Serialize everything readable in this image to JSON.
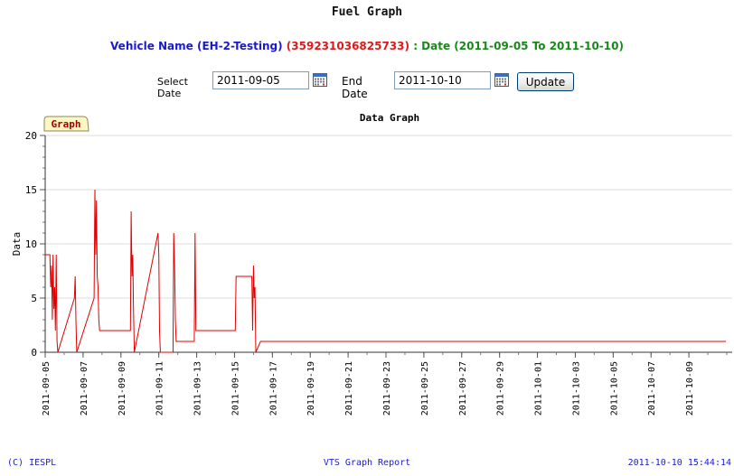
{
  "page": {
    "title": "Fuel Graph"
  },
  "vehicle": {
    "name_label": "Vehicle Name (EH-2-Testing)",
    "id_label": "(359231036825733)",
    "date_label": ": Date (2011-09-05 To 2011-10-10)"
  },
  "filters": {
    "select_label": "Select Date",
    "start_date": "2011-09-05",
    "end_label": "End Date",
    "end_date": "2011-10-10",
    "update_label": "Update"
  },
  "chart_tab": {
    "label": "Graph"
  },
  "chart_data": {
    "type": "line",
    "title": "Data Graph",
    "xlabel": "",
    "ylabel": "Data",
    "ylim": [
      0,
      20
    ],
    "yticks": [
      0,
      5,
      10,
      15,
      20
    ],
    "xlim": [
      "2011-09-05",
      "2011-10-11"
    ],
    "xticks": [
      "2011-09-05",
      "2011-09-07",
      "2011-09-09",
      "2011-09-11",
      "2011-09-13",
      "2011-09-15",
      "2011-09-17",
      "2011-09-19",
      "2011-09-21",
      "2011-09-23",
      "2011-09-25",
      "2011-09-27",
      "2011-09-29",
      "2011-10-01",
      "2011-10-03",
      "2011-10-05",
      "2011-10-07",
      "2011-10-09"
    ],
    "grid": true,
    "line_color": "#e00000",
    "series": [
      {
        "points": [
          [
            "2011-09-05 00:00",
            9
          ],
          [
            "2011-09-05 06:00",
            9
          ],
          [
            "2011-09-05 07:00",
            6
          ],
          [
            "2011-09-05 08:00",
            8
          ],
          [
            "2011-09-05 09:00",
            3
          ],
          [
            "2011-09-05 10:00",
            9
          ],
          [
            "2011-09-05 11:00",
            4
          ],
          [
            "2011-09-05 12:00",
            6
          ],
          [
            "2011-09-05 13:00",
            2
          ],
          [
            "2011-09-05 14:00",
            9
          ],
          [
            "2011-09-05 15:00",
            1
          ],
          [
            "2011-09-05 16:00",
            0
          ],
          [
            "2011-09-06 13:00",
            5
          ],
          [
            "2011-09-06 14:00",
            7
          ],
          [
            "2011-09-06 15:00",
            3
          ],
          [
            "2011-09-06 16:00",
            0
          ],
          [
            "2011-09-07 14:00",
            5
          ],
          [
            "2011-09-07 15:00",
            15
          ],
          [
            "2011-09-07 16:00",
            9
          ],
          [
            "2011-09-07 17:00",
            14
          ],
          [
            "2011-09-07 18:00",
            7
          ],
          [
            "2011-09-07 19:00",
            6
          ],
          [
            "2011-09-07 20:00",
            3
          ],
          [
            "2011-09-07 21:00",
            2
          ],
          [
            "2011-09-09 12:00",
            2
          ],
          [
            "2011-09-09 13:00",
            13
          ],
          [
            "2011-09-09 14:00",
            7
          ],
          [
            "2011-09-09 15:00",
            9
          ],
          [
            "2011-09-09 16:00",
            4
          ],
          [
            "2011-09-09 17:00",
            0
          ],
          [
            "2011-09-10 23:00",
            11
          ],
          [
            "2011-09-11 00:00",
            9
          ],
          [
            "2011-09-11 01:00",
            2
          ],
          [
            "2011-09-11 02:00",
            0
          ],
          [
            "2011-09-11 18:00",
            0
          ],
          [
            "2011-09-11 19:00",
            11
          ],
          [
            "2011-09-11 20:00",
            8
          ],
          [
            "2011-09-11 21:00",
            3
          ],
          [
            "2011-09-11 22:00",
            1
          ],
          [
            "2011-09-12 21:00",
            1
          ],
          [
            "2011-09-12 22:00",
            11
          ],
          [
            "2011-09-12 23:00",
            2
          ],
          [
            "2011-09-15 01:00",
            2
          ],
          [
            "2011-09-15 02:00",
            7
          ],
          [
            "2011-09-15 22:00",
            7
          ],
          [
            "2011-09-15 23:00",
            2
          ],
          [
            "2011-09-16 00:00",
            8
          ],
          [
            "2011-09-16 01:00",
            5
          ],
          [
            "2011-09-16 02:00",
            6
          ],
          [
            "2011-09-16 03:00",
            0
          ],
          [
            "2011-09-16 09:00",
            1
          ],
          [
            "2011-10-10 23:00",
            1
          ]
        ]
      }
    ]
  },
  "footer": {
    "left": "(C) IESPL",
    "center": "VTS Graph Report",
    "right": "2011-10-10 15:44:14"
  }
}
